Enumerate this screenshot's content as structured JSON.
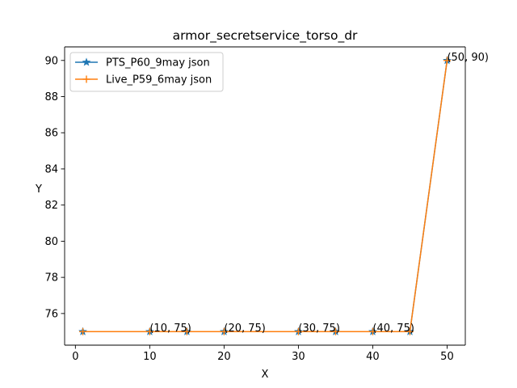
{
  "chart_data": {
    "type": "line",
    "title": "armor_secretservice_torso_dr",
    "xlabel": "X",
    "ylabel": "Y",
    "xlim": [
      -1.45,
      52.45
    ],
    "ylim": [
      74.25,
      90.75
    ],
    "xticks": [
      0,
      10,
      20,
      30,
      40,
      50
    ],
    "yticks": [
      76,
      78,
      80,
      82,
      84,
      86,
      88,
      90
    ],
    "grid": false,
    "legend": {
      "placement": "top-left"
    },
    "series": [
      {
        "name": "PTS_P60_9may json",
        "color": "#1f77b4",
        "marker": "star",
        "x": [
          1,
          10,
          15,
          20,
          30,
          35,
          40,
          45,
          50
        ],
        "y": [
          75,
          75,
          75,
          75,
          75,
          75,
          75,
          75,
          90
        ]
      },
      {
        "name": "Live_P59_6may json",
        "color": "#ff7f0e",
        "marker": "plus",
        "x": [
          1,
          10,
          15,
          20,
          30,
          35,
          40,
          45,
          50
        ],
        "y": [
          75,
          75,
          75,
          75,
          75,
          75,
          75,
          75,
          90
        ]
      }
    ],
    "annotations": [
      {
        "text": "(10, 75)",
        "x": 10,
        "y": 75
      },
      {
        "text": "(20, 75)",
        "x": 20,
        "y": 75
      },
      {
        "text": "(30, 75)",
        "x": 30,
        "y": 75
      },
      {
        "text": "(40, 75)",
        "x": 40,
        "y": 75
      },
      {
        "text": "(50, 90)",
        "x": 50,
        "y": 90
      }
    ]
  }
}
